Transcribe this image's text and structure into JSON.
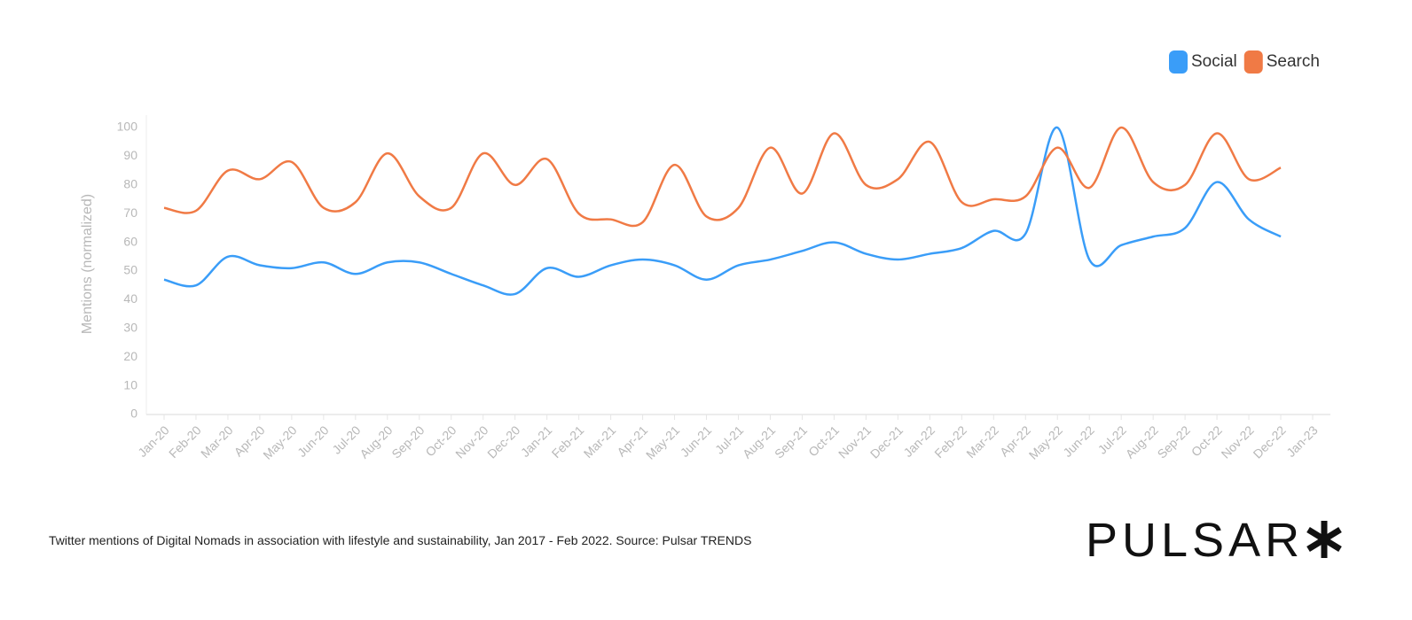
{
  "chart_data": {
    "type": "line",
    "y_label": "Mentions (normalized)",
    "caption": "Twitter mentions of Digital Nomads in association with lifestyle and sustainability, Jan 2017 - Feb 2022. Source: Pulsar TRENDS",
    "logo": "PULSAR",
    "categories": [
      "Jan-20",
      "Feb-20",
      "Mar-20",
      "Apr-20",
      "May-20",
      "Jun-20",
      "Jul-20",
      "Aug-20",
      "Sep-20",
      "Oct-20",
      "Nov-20",
      "Dec-20",
      "Jan-21",
      "Feb-21",
      "Mar-21",
      "Apr-21",
      "May-21",
      "Jun-21",
      "Jul-21",
      "Aug-21",
      "Sep-21",
      "Oct-21",
      "Nov-21",
      "Dec-21",
      "Jan-22",
      "Feb-22",
      "Mar-22",
      "Apr-22",
      "May-22",
      "Jun-22",
      "Jul-22",
      "Aug-22",
      "Sep-22",
      "Oct-22",
      "Nov-22",
      "Dec-22",
      "Jan-23"
    ],
    "series": [
      {
        "name": "Social",
        "color": "#3a9df8",
        "values": [
          47,
          45,
          55,
          52,
          51,
          53,
          49,
          53,
          53,
          49,
          45,
          42,
          51,
          48,
          52,
          54,
          52,
          47,
          52,
          54,
          57,
          60,
          56,
          54,
          56,
          58,
          64,
          63,
          100,
          54,
          59,
          62,
          65,
          81,
          68,
          62,
          null
        ]
      },
      {
        "name": "Search",
        "color": "#f07a45",
        "values": [
          72,
          71,
          85,
          82,
          88,
          72,
          74,
          91,
          76,
          72,
          91,
          80,
          89,
          70,
          68,
          67,
          87,
          69,
          72,
          93,
          77,
          98,
          80,
          82,
          95,
          74,
          75,
          76,
          93,
          79,
          100,
          81,
          80,
          98,
          82,
          86,
          null
        ]
      }
    ],
    "ylim": [
      0,
      100
    ],
    "yticks": [
      0,
      10,
      20,
      30,
      40,
      50,
      60,
      70,
      80,
      90,
      100
    ],
    "grid": false,
    "legend": "top-right"
  }
}
